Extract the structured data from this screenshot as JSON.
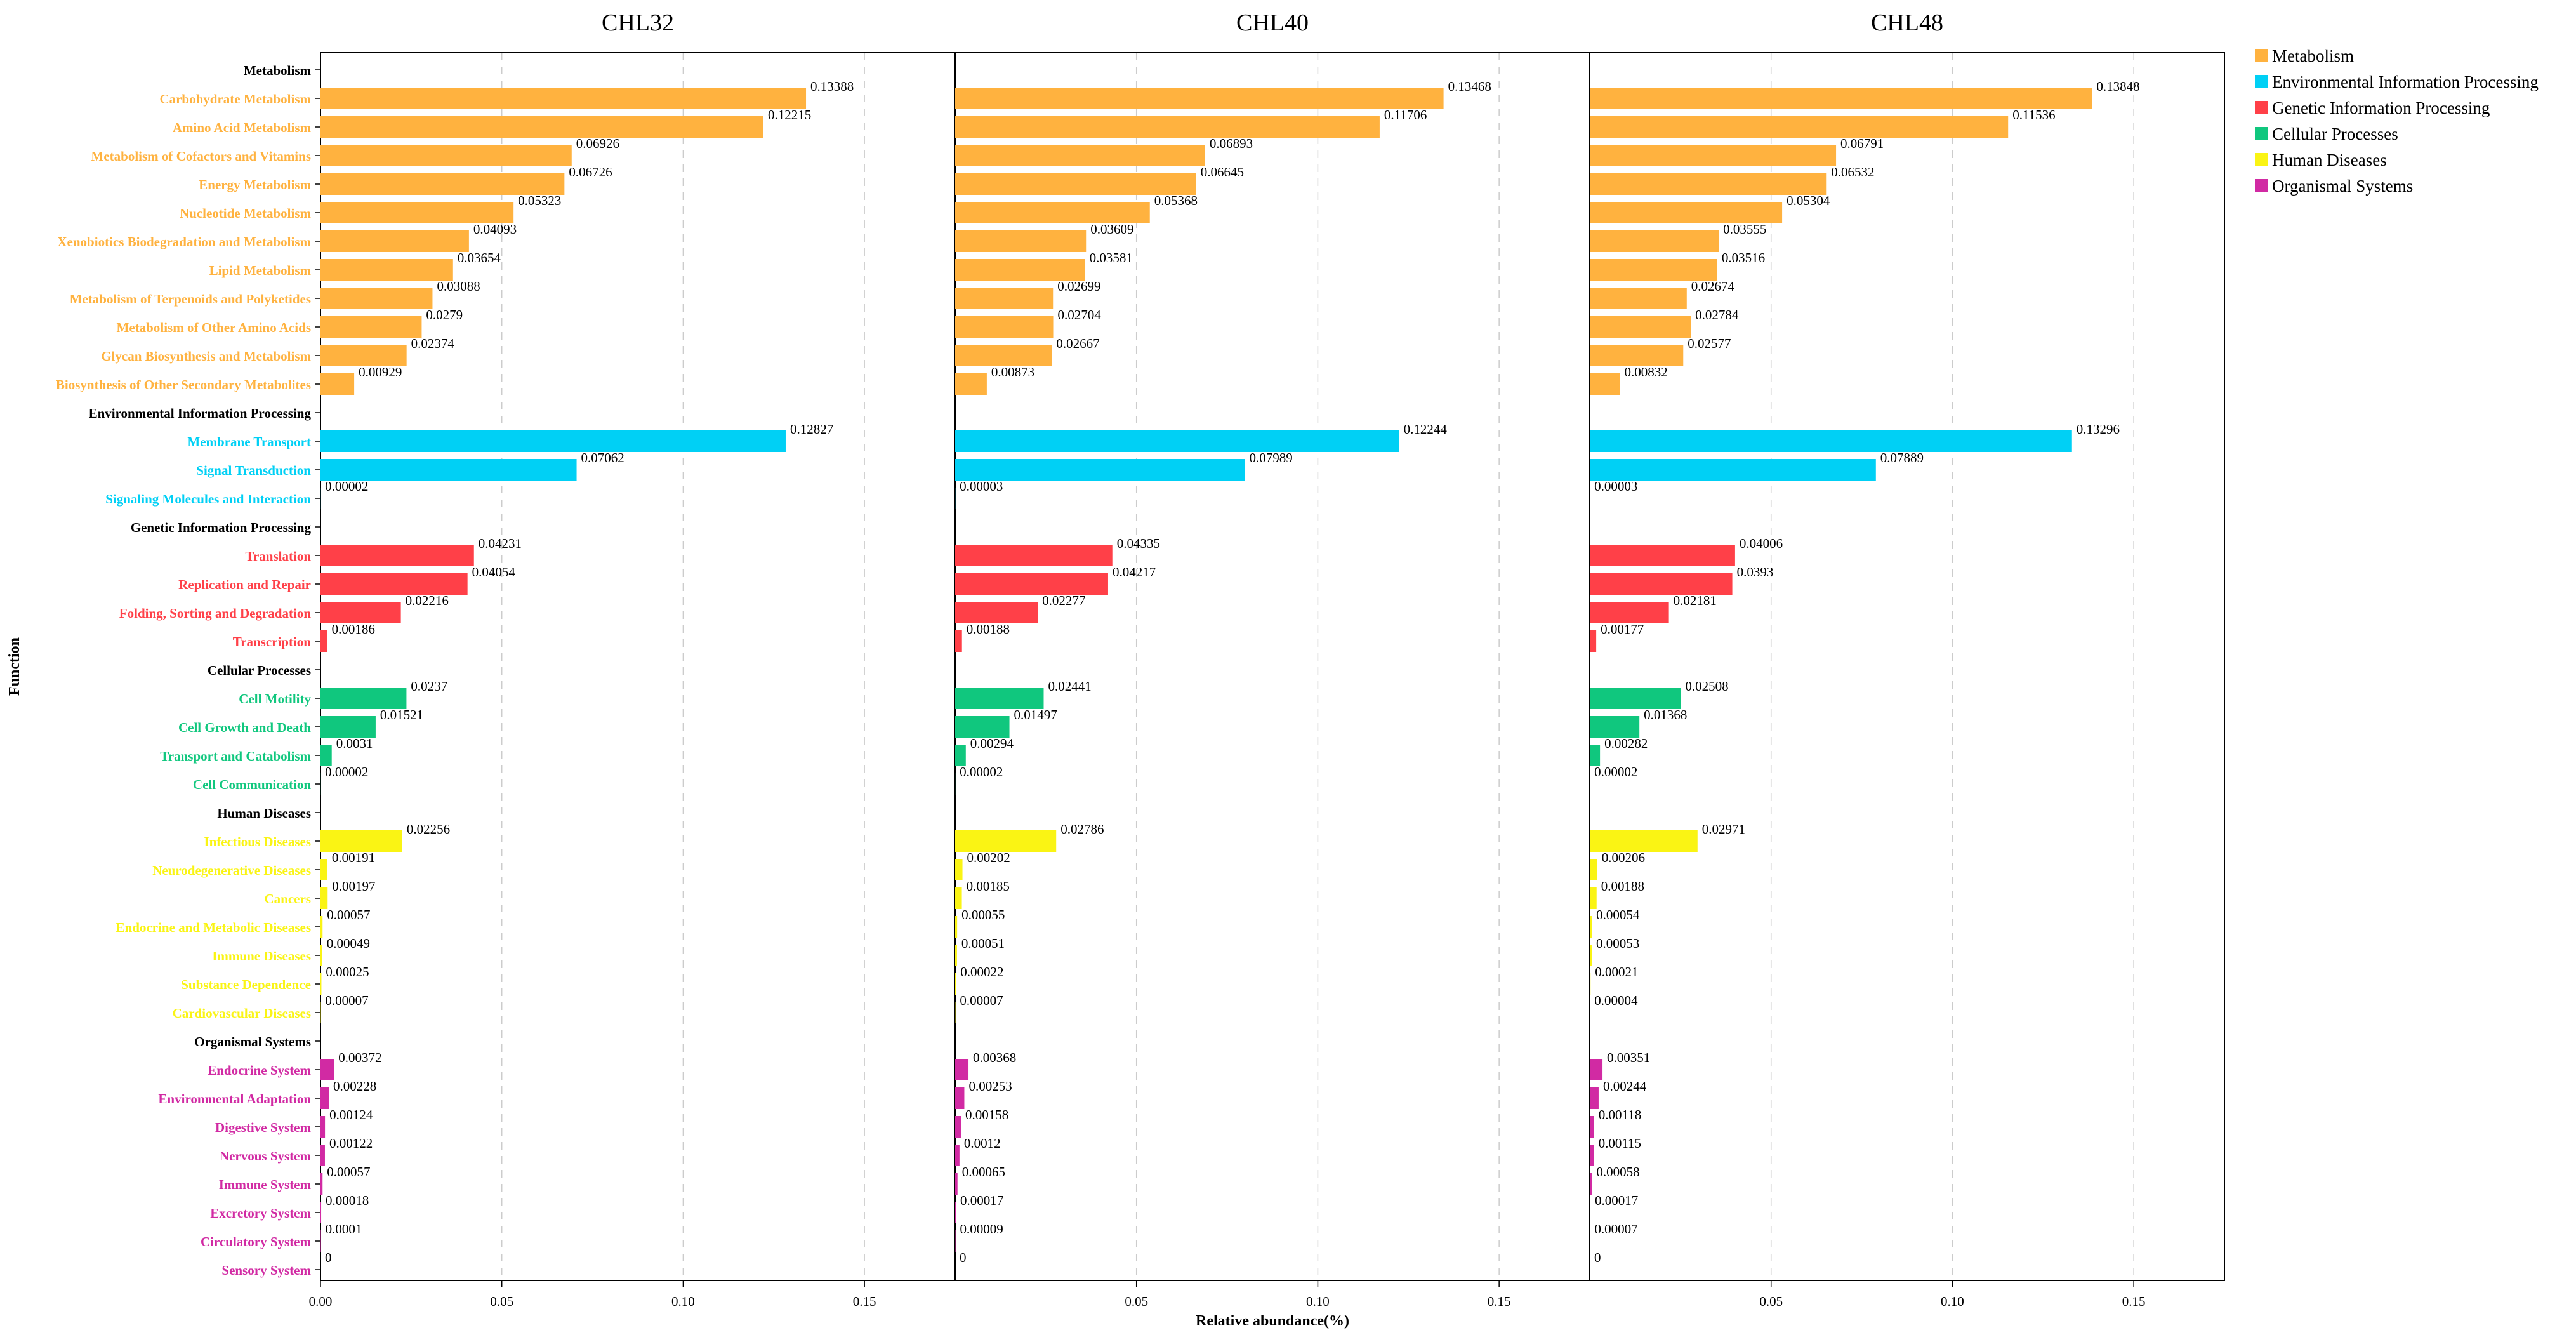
{
  "chart_data": {
    "type": "bar",
    "orientation": "horizontal",
    "panels": [
      "CHL32",
      "CHL40",
      "CHL48"
    ],
    "xlabel": "Relative abundance(%)",
    "ylabel": "Function",
    "xlim": [
      0,
      0.175
    ],
    "xticks": [
      0.0,
      0.05,
      0.1,
      0.15
    ],
    "xtick_labels": [
      "0.00",
      "0.05",
      "0.10",
      "0.15"
    ],
    "grid": true,
    "legend_position": "top-right",
    "groups": [
      {
        "name": "Metabolism",
        "color": "#FFB23F",
        "categories": [
          {
            "label": "Carbohydrate Metabolism",
            "values": [
              0.13388,
              0.13468,
              0.13848
            ],
            "labels": [
              "0.13388",
              "0.13468",
              "0.13848"
            ]
          },
          {
            "label": "Amino Acid Metabolism",
            "values": [
              0.12215,
              0.11706,
              0.11536
            ],
            "labels": [
              "0.12215",
              "0.11706",
              "0.11536"
            ]
          },
          {
            "label": "Metabolism of Cofactors and Vitamins",
            "values": [
              0.06926,
              0.06893,
              0.06791
            ],
            "labels": [
              "0.06926",
              "0.06893",
              "0.06791"
            ]
          },
          {
            "label": "Energy Metabolism",
            "values": [
              0.06726,
              0.06645,
              0.06532
            ],
            "labels": [
              "0.06726",
              "0.06645",
              "0.06532"
            ]
          },
          {
            "label": "Nucleotide Metabolism",
            "values": [
              0.05323,
              0.05368,
              0.05304
            ],
            "labels": [
              "0.05323",
              "0.05368",
              "0.05304"
            ]
          },
          {
            "label": "Xenobiotics Biodegradation and Metabolism",
            "values": [
              0.04093,
              0.03609,
              0.03555
            ],
            "labels": [
              "0.04093",
              "0.03609",
              "0.03555"
            ]
          },
          {
            "label": "Lipid Metabolism",
            "values": [
              0.03654,
              0.03581,
              0.03516
            ],
            "labels": [
              "0.03654",
              "0.03581",
              "0.03516"
            ]
          },
          {
            "label": "Metabolism of Terpenoids and Polyketides",
            "values": [
              0.03088,
              0.02699,
              0.02674
            ],
            "labels": [
              "0.03088",
              "0.02699",
              "0.02674"
            ]
          },
          {
            "label": "Metabolism of Other Amino Acids",
            "values": [
              0.0279,
              0.02704,
              0.02784
            ],
            "labels": [
              "0.0279",
              "0.02704",
              "0.02784"
            ]
          },
          {
            "label": "Glycan Biosynthesis and Metabolism",
            "values": [
              0.02374,
              0.02667,
              0.02577
            ],
            "labels": [
              "0.02374",
              "0.02667",
              "0.02577"
            ]
          },
          {
            "label": "Biosynthesis of Other Secondary Metabolites",
            "values": [
              0.00929,
              0.00873,
              0.00832
            ],
            "labels": [
              "0.00929",
              "0.00873",
              "0.00832"
            ]
          }
        ]
      },
      {
        "name": "Environmental Information Processing",
        "color": "#00D0F5",
        "categories": [
          {
            "label": "Membrane Transport",
            "values": [
              0.12827,
              0.12244,
              0.13296
            ],
            "labels": [
              "0.12827",
              "0.12244",
              "0.13296"
            ]
          },
          {
            "label": "Signal Transduction",
            "values": [
              0.07062,
              0.07989,
              0.07889
            ],
            "labels": [
              "0.07062",
              "0.07989",
              "0.07889"
            ]
          },
          {
            "label": "Signaling Molecules and Interaction",
            "values": [
              2e-05,
              3e-05,
              3e-05
            ],
            "labels": [
              "0.00002",
              "0.00003",
              "0.00003"
            ]
          }
        ]
      },
      {
        "name": "Genetic Information Processing",
        "color": "#FF4048",
        "categories": [
          {
            "label": "Translation",
            "values": [
              0.04231,
              0.04335,
              0.04006
            ],
            "labels": [
              "0.04231",
              "0.04335",
              "0.04006"
            ]
          },
          {
            "label": "Replication and Repair",
            "values": [
              0.04054,
              0.04217,
              0.0393
            ],
            "labels": [
              "0.04054",
              "0.04217",
              "0.0393"
            ]
          },
          {
            "label": "Folding, Sorting and Degradation",
            "values": [
              0.02216,
              0.02277,
              0.02181
            ],
            "labels": [
              "0.02216",
              "0.02277",
              "0.02181"
            ]
          },
          {
            "label": "Transcription",
            "values": [
              0.00186,
              0.00188,
              0.00177
            ],
            "labels": [
              "0.00186",
              "0.00188",
              "0.00177"
            ]
          }
        ]
      },
      {
        "name": "Cellular Processes",
        "color": "#10C77E",
        "categories": [
          {
            "label": "Cell Motility",
            "values": [
              0.0237,
              0.02441,
              0.02508
            ],
            "labels": [
              "0.0237",
              "0.02441",
              "0.02508"
            ]
          },
          {
            "label": "Cell Growth and Death",
            "values": [
              0.01521,
              0.01497,
              0.01368
            ],
            "labels": [
              "0.01521",
              "0.01497",
              "0.01368"
            ]
          },
          {
            "label": "Transport and Catabolism",
            "values": [
              0.0031,
              0.00294,
              0.00282
            ],
            "labels": [
              "0.0031",
              "0.00294",
              "0.00282"
            ]
          },
          {
            "label": "Cell Communication",
            "values": [
              2e-05,
              2e-05,
              2e-05
            ],
            "labels": [
              "0.00002",
              "0.00002",
              "0.00002"
            ]
          }
        ]
      },
      {
        "name": "Human Diseases",
        "color": "#FAF414",
        "categories": [
          {
            "label": "Infectious Diseases",
            "values": [
              0.02256,
              0.02786,
              0.02971
            ],
            "labels": [
              "0.02256",
              "0.02786",
              "0.02971"
            ]
          },
          {
            "label": "Neurodegenerative Diseases",
            "values": [
              0.00191,
              0.00202,
              0.00206
            ],
            "labels": [
              "0.00191",
              "0.00202",
              "0.00206"
            ]
          },
          {
            "label": "Cancers",
            "values": [
              0.00197,
              0.00185,
              0.00188
            ],
            "labels": [
              "0.00197",
              "0.00185",
              "0.00188"
            ]
          },
          {
            "label": "Endocrine and Metabolic Diseases",
            "values": [
              0.00057,
              0.00055,
              0.00054
            ],
            "labels": [
              "0.00057",
              "0.00055",
              "0.00054"
            ]
          },
          {
            "label": "Immune Diseases",
            "values": [
              0.00049,
              0.00051,
              0.00053
            ],
            "labels": [
              "0.00049",
              "0.00051",
              "0.00053"
            ]
          },
          {
            "label": "Substance Dependence",
            "values": [
              0.00025,
              0.00022,
              0.00021
            ],
            "labels": [
              "0.00025",
              "0.00022",
              "0.00021"
            ]
          },
          {
            "label": "Cardiovascular Diseases",
            "values": [
              7e-05,
              7e-05,
              4e-05
            ],
            "labels": [
              "0.00007",
              "0.00007",
              "0.00004"
            ]
          }
        ]
      },
      {
        "name": "Organismal Systems",
        "color": "#D12AA3",
        "categories": [
          {
            "label": "Endocrine System",
            "values": [
              0.00372,
              0.00368,
              0.00351
            ],
            "labels": [
              "0.00372",
              "0.00368",
              "0.00351"
            ]
          },
          {
            "label": "Environmental Adaptation",
            "values": [
              0.00228,
              0.00253,
              0.00244
            ],
            "labels": [
              "0.00228",
              "0.00253",
              "0.00244"
            ]
          },
          {
            "label": "Digestive System",
            "values": [
              0.00124,
              0.00158,
              0.00118
            ],
            "labels": [
              "0.00124",
              "0.00158",
              "0.00118"
            ]
          },
          {
            "label": "Nervous System",
            "values": [
              0.00122,
              0.0012,
              0.00115
            ],
            "labels": [
              "0.00122",
              "0.0012",
              "0.00115"
            ]
          },
          {
            "label": "Immune System",
            "values": [
              0.00057,
              0.00065,
              0.00058
            ],
            "labels": [
              "0.00057",
              "0.00065",
              "0.00058"
            ]
          },
          {
            "label": "Excretory System",
            "values": [
              0.00018,
              0.00017,
              0.00017
            ],
            "labels": [
              "0.00018",
              "0.00017",
              "0.00017"
            ]
          },
          {
            "label": "Circulatory System",
            "values": [
              0.0001,
              9e-05,
              7e-05
            ],
            "labels": [
              "0.0001",
              "0.00009",
              "0.00007"
            ]
          },
          {
            "label": "Sensory System",
            "values": [
              0,
              0,
              0
            ],
            "labels": [
              "0",
              "0",
              "0"
            ]
          }
        ]
      }
    ]
  }
}
